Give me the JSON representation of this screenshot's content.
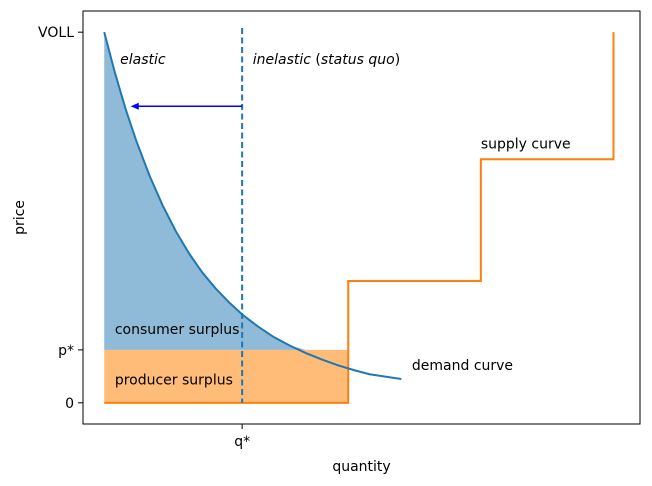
{
  "chart_data": {
    "type": "area",
    "xlabel": "quantity",
    "ylabel": "price",
    "xlim": [
      0,
      10.5
    ],
    "ylim": [
      -0.4,
      7.4
    ],
    "x_ticks": [
      {
        "value": 3,
        "label": "q*"
      }
    ],
    "y_ticks": [
      {
        "value": 0,
        "label": "0"
      },
      {
        "value": 1,
        "label": "p*"
      },
      {
        "value": 7,
        "label": "VOLL"
      }
    ],
    "demand_curve": {
      "label": "demand curve",
      "color": "#1f77b4",
      "x": [
        0.4,
        0.6,
        0.8,
        1.0,
        1.25,
        1.5,
        1.75,
        2.0,
        2.25,
        2.5,
        2.75,
        3.0,
        3.3,
        3.6,
        3.9,
        4.2,
        4.5,
        4.8,
        5.1,
        5.4,
        6.0
      ],
      "y": [
        7.0,
        6.24,
        5.56,
        4.96,
        4.3,
        3.73,
        3.24,
        2.82,
        2.46,
        2.16,
        1.9,
        1.67,
        1.44,
        1.24,
        1.08,
        0.94,
        0.82,
        0.71,
        0.62,
        0.54,
        0.45
      ]
    },
    "supply_curve": {
      "label": "supply curve",
      "color": "#ff7f0e",
      "x": [
        0.4,
        5.0,
        5.0,
        7.5,
        7.5,
        10.0,
        10.0
      ],
      "y": [
        0.0,
        0.0,
        2.3,
        2.3,
        4.6,
        4.6,
        7.0
      ]
    },
    "consumer_surplus": {
      "label": "consumer surplus",
      "color": "#1f77b4",
      "opacity": 0.5,
      "x_range": [
        0.4,
        5.0
      ],
      "floor": 1.0
    },
    "producer_surplus": {
      "label": "producer surplus",
      "color": "#ffbb78",
      "x_range": [
        0.4,
        5.0
      ],
      "y_range": [
        0,
        1.0
      ]
    },
    "vertical_line": {
      "x": 3.0,
      "color": "#1f77b4",
      "style": "dashed"
    },
    "arrow": {
      "from": [
        3.0,
        5.6
      ],
      "to": [
        0.9,
        5.6
      ],
      "color": "#0000ff"
    },
    "annotations": [
      {
        "key": "elastic",
        "text": "elastic",
        "x": 0.7,
        "y": 6.4,
        "italic": true
      },
      {
        "key": "inelastic",
        "parts": [
          {
            "text": "inelastic",
            "italic": true
          },
          {
            "text": " (",
            "italic": false
          },
          {
            "text": "status quo",
            "italic": true
          },
          {
            "text": ")",
            "italic": false
          }
        ],
        "x": 3.2,
        "y": 6.4
      },
      {
        "key": "supply",
        "text": "supply curve",
        "x": 7.5,
        "y": 4.8
      },
      {
        "key": "consumer",
        "text": "consumer surplus",
        "x": 0.6,
        "y": 1.3
      },
      {
        "key": "producer",
        "text": "producer surplus",
        "x": 0.6,
        "y": 0.35
      },
      {
        "key": "demand",
        "text": "demand curve",
        "x": 6.2,
        "y": 0.62
      }
    ]
  }
}
